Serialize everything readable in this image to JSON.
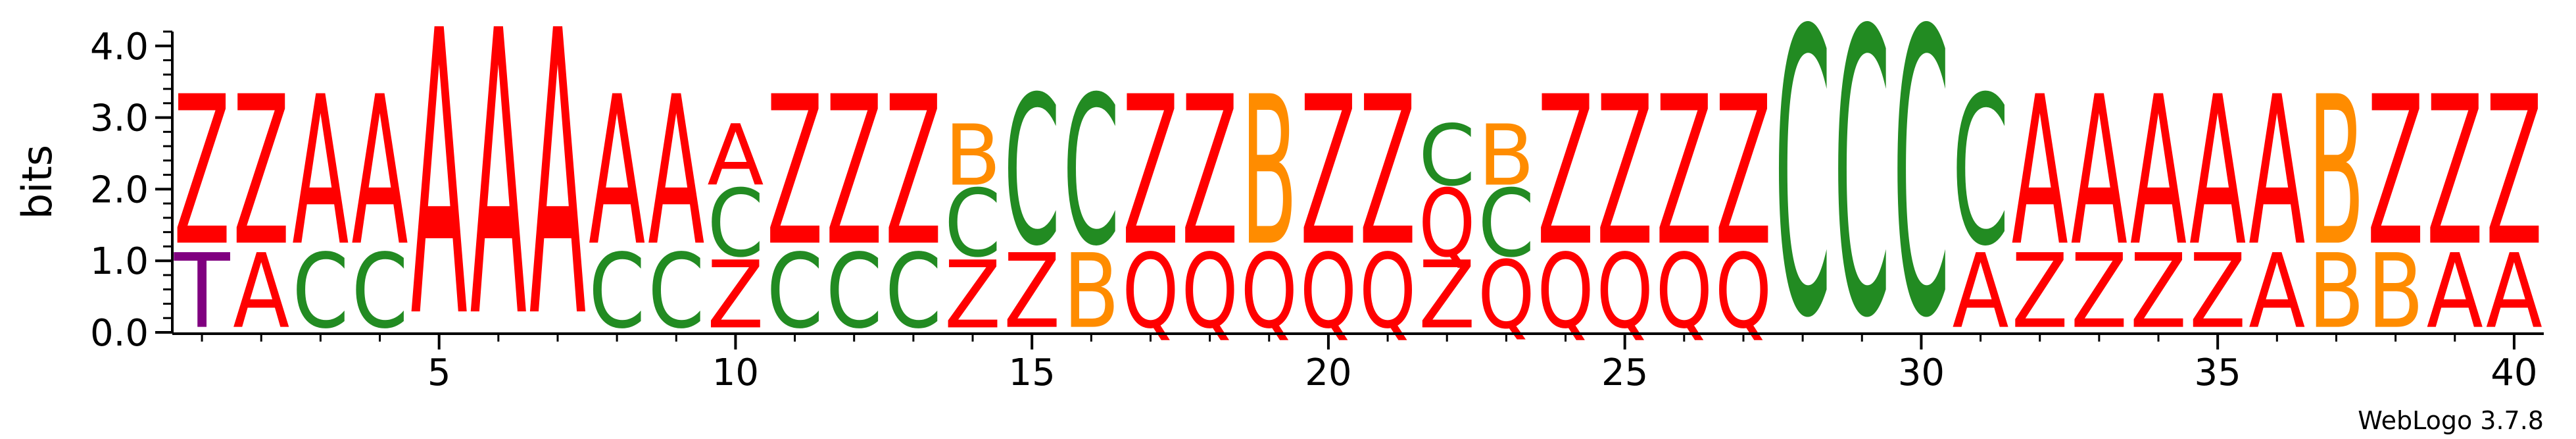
{
  "chart_data": {
    "type": "sequence_logo",
    "ylabel": "bits",
    "ylim": [
      0,
      4.2
    ],
    "y_ticks": [
      "0.0",
      "1.0",
      "2.0",
      "3.0",
      "4.0"
    ],
    "x_ticks": [
      "5",
      "10",
      "15",
      "20",
      "25",
      "30",
      "35",
      "40"
    ],
    "x_tick_values": [
      5,
      10,
      15,
      20,
      25,
      30,
      35,
      40
    ],
    "positions": 40,
    "credit": "WebLogo 3.7.8",
    "colors": {
      "A": "#ff0000",
      "Z": "#ff0000",
      "Q": "#ff0000",
      "C": "#228b22",
      "B": "#ff8c00",
      "T": "#800080"
    },
    "columns": [
      {
        "pos": 1,
        "stack": [
          {
            "letter": "T",
            "bits": 1.1
          },
          {
            "letter": "Z",
            "bits": 2.2
          }
        ]
      },
      {
        "pos": 2,
        "stack": [
          {
            "letter": "A",
            "bits": 1.1
          },
          {
            "letter": "Z",
            "bits": 2.2
          }
        ]
      },
      {
        "pos": 3,
        "stack": [
          {
            "letter": "C",
            "bits": 1.1
          },
          {
            "letter": "A",
            "bits": 2.2
          }
        ]
      },
      {
        "pos": 4,
        "stack": [
          {
            "letter": "C",
            "bits": 1.1
          },
          {
            "letter": "A",
            "bits": 2.2
          }
        ]
      },
      {
        "pos": 5,
        "stack": [
          {
            "letter": "A",
            "bits": 4.2
          }
        ]
      },
      {
        "pos": 6,
        "stack": [
          {
            "letter": "A",
            "bits": 4.2
          }
        ]
      },
      {
        "pos": 7,
        "stack": [
          {
            "letter": "A",
            "bits": 4.2
          }
        ]
      },
      {
        "pos": 8,
        "stack": [
          {
            "letter": "C",
            "bits": 1.1
          },
          {
            "letter": "A",
            "bits": 2.2
          }
        ]
      },
      {
        "pos": 9,
        "stack": [
          {
            "letter": "C",
            "bits": 1.1
          },
          {
            "letter": "A",
            "bits": 2.2
          }
        ]
      },
      {
        "pos": 10,
        "stack": [
          {
            "letter": "Z",
            "bits": 1.0
          },
          {
            "letter": "C",
            "bits": 1.0
          },
          {
            "letter": "A",
            "bits": 0.9
          }
        ]
      },
      {
        "pos": 11,
        "stack": [
          {
            "letter": "C",
            "bits": 1.1
          },
          {
            "letter": "Z",
            "bits": 2.2
          }
        ]
      },
      {
        "pos": 12,
        "stack": [
          {
            "letter": "C",
            "bits": 1.1
          },
          {
            "letter": "Z",
            "bits": 2.2
          }
        ]
      },
      {
        "pos": 13,
        "stack": [
          {
            "letter": "C",
            "bits": 1.1
          },
          {
            "letter": "Z",
            "bits": 2.2
          }
        ]
      },
      {
        "pos": 14,
        "stack": [
          {
            "letter": "Z",
            "bits": 1.0
          },
          {
            "letter": "C",
            "bits": 1.0
          },
          {
            "letter": "B",
            "bits": 0.9
          }
        ]
      },
      {
        "pos": 15,
        "stack": [
          {
            "letter": "Z",
            "bits": 1.1
          },
          {
            "letter": "C",
            "bits": 2.2
          }
        ]
      },
      {
        "pos": 16,
        "stack": [
          {
            "letter": "B",
            "bits": 1.1
          },
          {
            "letter": "C",
            "bits": 2.2
          }
        ]
      },
      {
        "pos": 17,
        "stack": [
          {
            "letter": "Q",
            "bits": 1.1
          },
          {
            "letter": "Z",
            "bits": 2.2
          }
        ]
      },
      {
        "pos": 18,
        "stack": [
          {
            "letter": "Q",
            "bits": 1.1
          },
          {
            "letter": "Z",
            "bits": 2.2
          }
        ]
      },
      {
        "pos": 19,
        "stack": [
          {
            "letter": "Q",
            "bits": 1.1
          },
          {
            "letter": "B",
            "bits": 2.2
          }
        ]
      },
      {
        "pos": 20,
        "stack": [
          {
            "letter": "Q",
            "bits": 1.1
          },
          {
            "letter": "Z",
            "bits": 2.2
          }
        ]
      },
      {
        "pos": 21,
        "stack": [
          {
            "letter": "Q",
            "bits": 1.1
          },
          {
            "letter": "Z",
            "bits": 2.2
          }
        ]
      },
      {
        "pos": 22,
        "stack": [
          {
            "letter": "Z",
            "bits": 1.0
          },
          {
            "letter": "Q",
            "bits": 1.0
          },
          {
            "letter": "C",
            "bits": 0.9
          }
        ]
      },
      {
        "pos": 23,
        "stack": [
          {
            "letter": "Q",
            "bits": 1.0
          },
          {
            "letter": "C",
            "bits": 1.0
          },
          {
            "letter": "B",
            "bits": 0.9
          }
        ]
      },
      {
        "pos": 24,
        "stack": [
          {
            "letter": "Q",
            "bits": 1.1
          },
          {
            "letter": "Z",
            "bits": 2.2
          }
        ]
      },
      {
        "pos": 25,
        "stack": [
          {
            "letter": "Q",
            "bits": 1.1
          },
          {
            "letter": "Z",
            "bits": 2.2
          }
        ]
      },
      {
        "pos": 26,
        "stack": [
          {
            "letter": "Q",
            "bits": 1.1
          },
          {
            "letter": "Z",
            "bits": 2.2
          }
        ]
      },
      {
        "pos": 27,
        "stack": [
          {
            "letter": "Q",
            "bits": 1.1
          },
          {
            "letter": "Z",
            "bits": 2.2
          }
        ]
      },
      {
        "pos": 28,
        "stack": [
          {
            "letter": "C",
            "bits": 4.2
          }
        ]
      },
      {
        "pos": 29,
        "stack": [
          {
            "letter": "C",
            "bits": 4.2
          }
        ]
      },
      {
        "pos": 30,
        "stack": [
          {
            "letter": "C",
            "bits": 4.2
          }
        ]
      },
      {
        "pos": 31,
        "stack": [
          {
            "letter": "A",
            "bits": 1.1
          },
          {
            "letter": "C",
            "bits": 2.2
          }
        ]
      },
      {
        "pos": 32,
        "stack": [
          {
            "letter": "Z",
            "bits": 1.1
          },
          {
            "letter": "A",
            "bits": 2.2
          }
        ]
      },
      {
        "pos": 33,
        "stack": [
          {
            "letter": "Z",
            "bits": 1.1
          },
          {
            "letter": "A",
            "bits": 2.2
          }
        ]
      },
      {
        "pos": 34,
        "stack": [
          {
            "letter": "Z",
            "bits": 1.1
          },
          {
            "letter": "A",
            "bits": 2.2
          }
        ]
      },
      {
        "pos": 35,
        "stack": [
          {
            "letter": "Z",
            "bits": 1.1
          },
          {
            "letter": "A",
            "bits": 2.2
          }
        ]
      },
      {
        "pos": 36,
        "stack": [
          {
            "letter": "A",
            "bits": 1.1
          },
          {
            "letter": "A",
            "bits": 2.2
          }
        ]
      },
      {
        "pos": 37,
        "stack": [
          {
            "letter": "B",
            "bits": 1.1
          },
          {
            "letter": "B",
            "bits": 2.2
          }
        ]
      },
      {
        "pos": 38,
        "stack": [
          {
            "letter": "B",
            "bits": 1.1
          },
          {
            "letter": "Z",
            "bits": 2.2
          }
        ]
      },
      {
        "pos": 39,
        "stack": [
          {
            "letter": "A",
            "bits": 1.1
          },
          {
            "letter": "Z",
            "bits": 2.2
          }
        ]
      },
      {
        "pos": 40,
        "stack": [
          {
            "letter": "A",
            "bits": 1.1
          },
          {
            "letter": "Z",
            "bits": 2.2
          }
        ]
      }
    ]
  }
}
